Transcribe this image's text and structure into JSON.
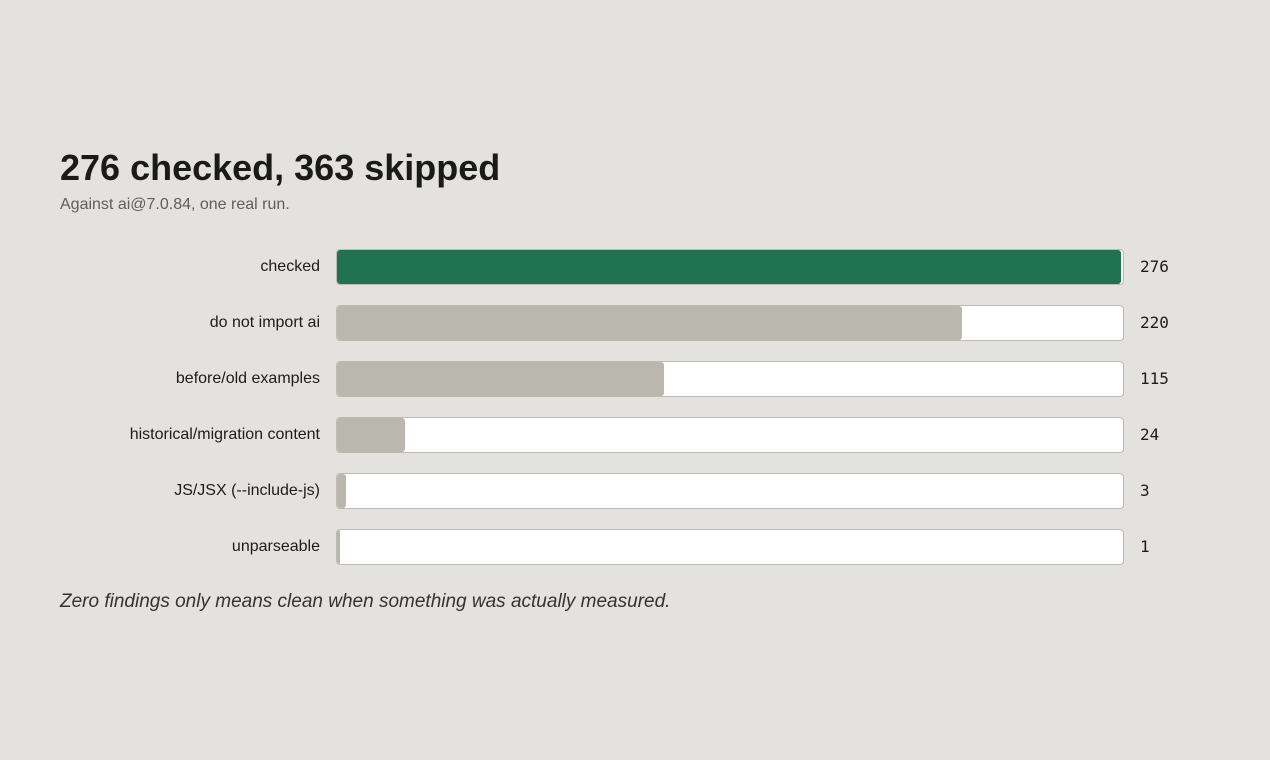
{
  "header": {
    "title": "276 checked, 363 skipped",
    "subtitle": "Against ai@7.0.84, one real run."
  },
  "chart_data": {
    "type": "bar",
    "orientation": "horizontal",
    "categories": [
      "checked",
      "do not import ai",
      "before/old examples",
      "historical/migration content",
      "JS/JSX (--include-js)",
      "unparseable"
    ],
    "values": [
      276,
      220,
      115,
      24,
      3,
      1
    ],
    "value_labels": [
      "276",
      "220",
      "115",
      "24",
      "3",
      "1"
    ],
    "xlim": [
      0,
      276
    ],
    "grid": false,
    "legend": "none",
    "title": "276 checked, 363 skipped",
    "subtitle": "Against ai@7.0.84, one real run.",
    "colors": {
      "highlight": "#1f7350",
      "default": "#bab7af",
      "track": "#ffffff"
    }
  },
  "footer": {
    "note": "Zero findings only means clean when something was actually measured."
  }
}
